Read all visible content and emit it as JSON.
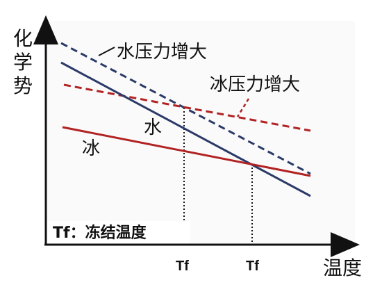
{
  "diagram": {
    "y_axis_label": "化学势",
    "x_axis_label": "温度",
    "tick_labels": {
      "tf_left": "Tf",
      "tf_right": "Tf"
    },
    "curve_labels": {
      "water": "水",
      "ice": "冰",
      "water_high_pressure": "水压力增大",
      "ice_high_pressure": "冰压力增大"
    },
    "note": "Tf：冻结温度",
    "colors": {
      "water": "#2b3a67",
      "ice": "#b22222",
      "axis": "#111111"
    }
  }
}
